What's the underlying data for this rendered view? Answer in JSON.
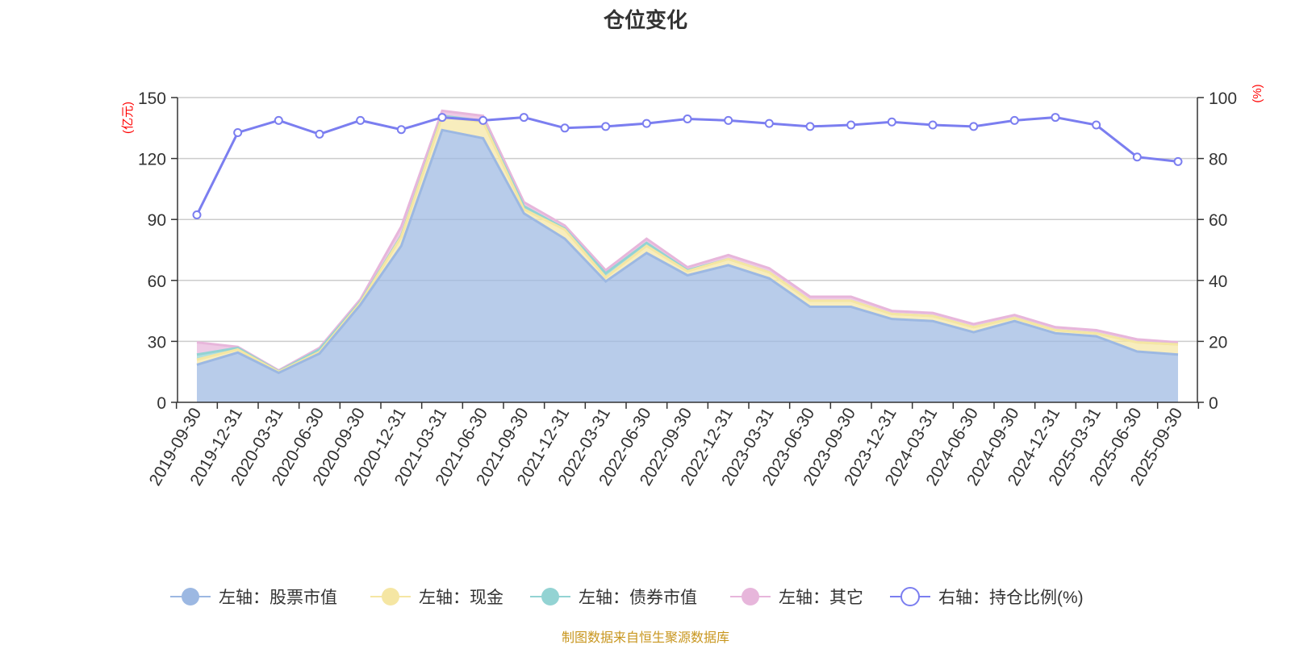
{
  "chart_data": {
    "type": "area",
    "title": "仓位变化",
    "left_axis_unit": "(亿元)",
    "right_axis_unit": "(%)",
    "ylim_left": [
      0,
      150
    ],
    "yticks_left": [
      0,
      30,
      60,
      90,
      120,
      150
    ],
    "ylim_right": [
      0,
      100
    ],
    "yticks_right": [
      0,
      20,
      40,
      60,
      80,
      100
    ],
    "grid": true,
    "stacked": true,
    "categories": [
      "2019-09-30",
      "2019-12-31",
      "2020-03-31",
      "2020-06-30",
      "2020-09-30",
      "2020-12-31",
      "2021-03-31",
      "2021-06-30",
      "2021-09-30",
      "2021-12-31",
      "2022-03-31",
      "2022-06-30",
      "2022-09-30",
      "2022-12-31",
      "2023-03-31",
      "2023-06-30",
      "2023-09-30",
      "2023-12-31",
      "2024-03-31",
      "2024-06-30",
      "2024-09-30",
      "2024-12-31",
      "2025-03-31",
      "2025-06-30",
      "2025-09-30"
    ],
    "series": [
      {
        "name": "左轴：股票市值",
        "axis": "left",
        "color": "#9cb8e2",
        "values": [
          18.5,
          24.5,
          14.5,
          24,
          48,
          77,
          134,
          130,
          93,
          80.5,
          59.5,
          73.5,
          62.5,
          67.5,
          61,
          47,
          47,
          41,
          40,
          34.5,
          40,
          34,
          32.5,
          25,
          23.5
        ]
      },
      {
        "name": "左轴：现金",
        "axis": "left",
        "color": "#f5e6a3",
        "values": [
          2.5,
          1.5,
          0.5,
          0.8,
          1,
          4.5,
          6.5,
          8,
          2,
          4.5,
          2,
          3.5,
          2,
          3,
          3,
          3,
          3,
          2.5,
          2.5,
          2.5,
          1.5,
          1.5,
          1.5,
          4.5,
          5
        ]
      },
      {
        "name": "左轴：债券市值",
        "axis": "left",
        "color": "#93d3d3",
        "values": [
          2.5,
          0.8,
          0.2,
          1.2,
          0.5,
          0.5,
          0.5,
          0.5,
          1.5,
          0.5,
          2,
          1.5,
          0.5,
          0,
          0,
          0,
          0,
          0,
          0,
          0,
          0,
          0,
          0,
          0,
          0
        ]
      },
      {
        "name": "左轴：其它",
        "axis": "left",
        "color": "#e7b6db",
        "values": [
          6,
          0.5,
          0.5,
          0.8,
          1.2,
          4.5,
          2.5,
          2.5,
          2,
          1.5,
          1.5,
          2,
          1.5,
          2,
          2,
          2,
          2,
          1.5,
          1.5,
          1.5,
          1.5,
          1.5,
          1.5,
          1.5,
          1
        ]
      },
      {
        "name": "右轴：持仓比例(%)",
        "axis": "right",
        "type": "line",
        "color": "#7b7ef0",
        "values": [
          61.5,
          88.5,
          92.5,
          88,
          92.5,
          89.5,
          93.5,
          92.5,
          93.5,
          90,
          90.5,
          91.5,
          93,
          92.5,
          91.5,
          90.5,
          91,
          92,
          91,
          90.5,
          92.5,
          93.5,
          91,
          80.5,
          79
        ]
      }
    ]
  },
  "source_note": "制图数据来自恒生聚源数据库"
}
